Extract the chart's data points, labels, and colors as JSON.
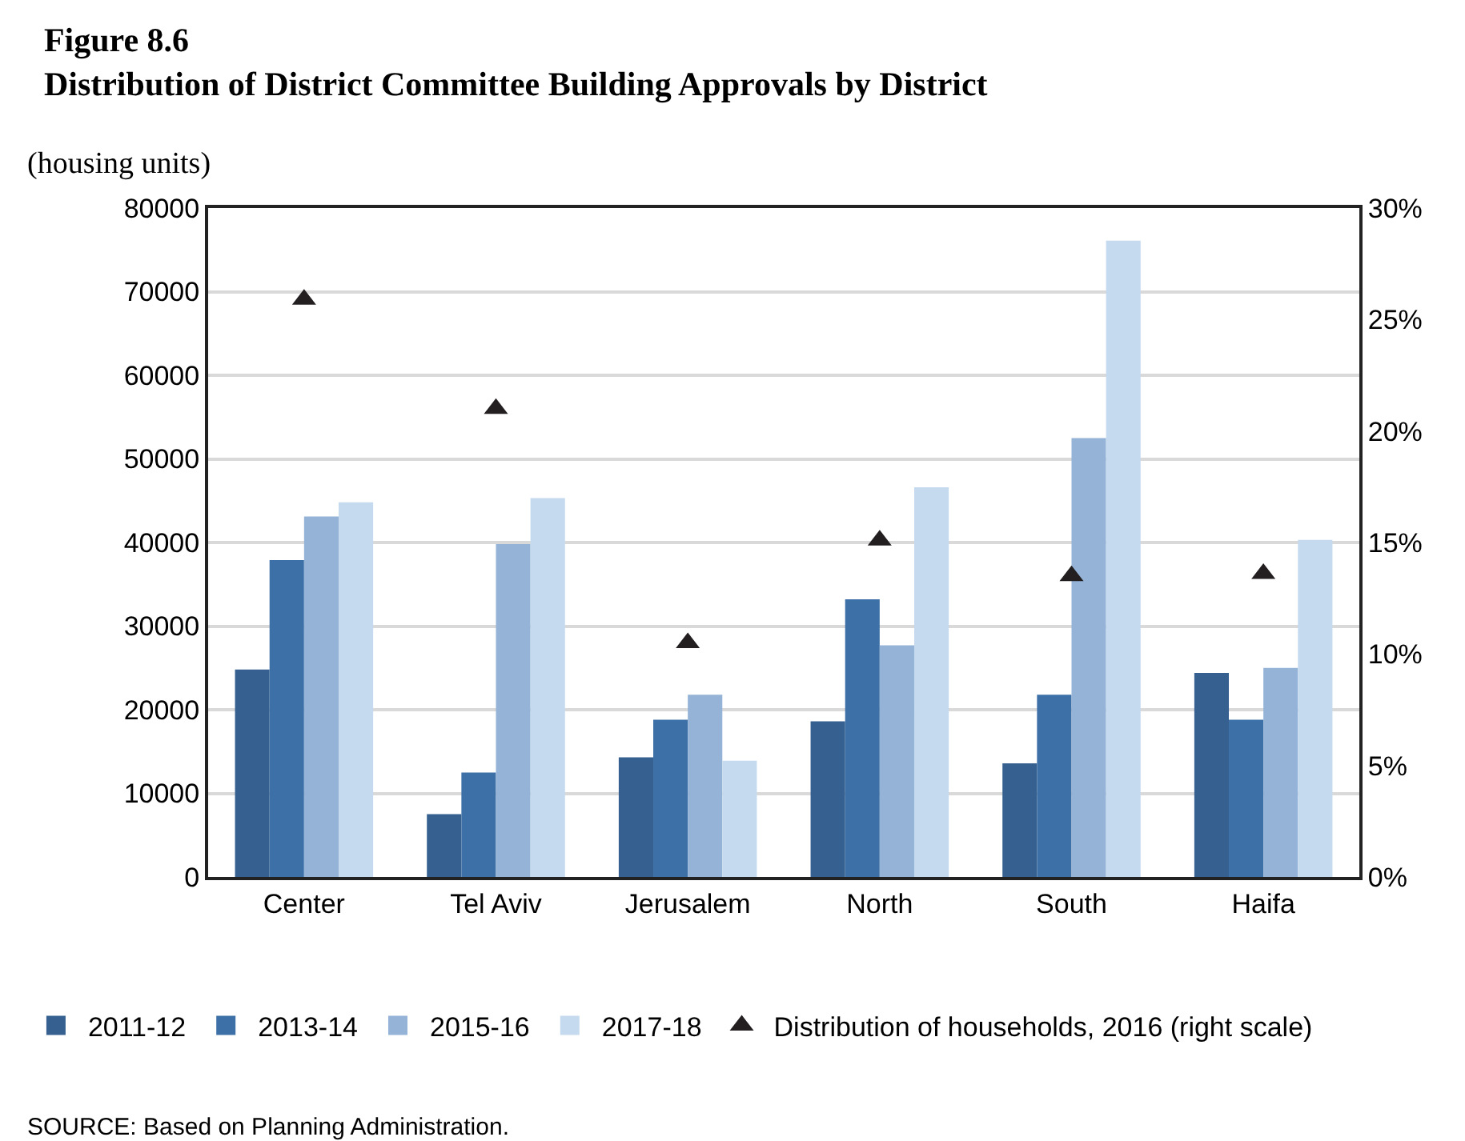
{
  "chart_data": {
    "type": "bar",
    "title": "Figure 8.6\nDistribution of District Committee Building Approvals by District",
    "subtitle": "(housing units)",
    "categories": [
      "Center",
      "Tel Aviv",
      "Jerusalem",
      "North",
      "South",
      "Haifa"
    ],
    "series": [
      {
        "name": "2011-12",
        "color": "#35608f",
        "values": [
          24800,
          7500,
          14300,
          18600,
          13600,
          24400
        ]
      },
      {
        "name": "2013-14",
        "color": "#3d70a6",
        "values": [
          37900,
          12500,
          18800,
          33200,
          21800,
          18800
        ]
      },
      {
        "name": "2015-16",
        "color": "#94b3d7",
        "values": [
          43100,
          39800,
          21800,
          27700,
          52500,
          25000
        ]
      },
      {
        "name": "2017-18",
        "color": "#c5daee",
        "values": [
          44800,
          45300,
          13900,
          46600,
          76100,
          40300
        ]
      },
      {
        "name": "Distribution of households, 2016 (right scale)",
        "type": "scatter",
        "axis": "y2",
        "marker": "triangle",
        "color": "#231f20",
        "x": [
          "Center",
          "Tel Aviv",
          "Jerusalem",
          "North",
          "South",
          "Haifa"
        ],
        "values": [
          25.9,
          21.0,
          10.5,
          15.1,
          13.5,
          13.6
        ]
      }
    ],
    "ylim": [
      0,
      80000
    ],
    "yticks": [
      0,
      10000,
      20000,
      30000,
      40000,
      50000,
      60000,
      70000,
      80000
    ],
    "y2lim": [
      0,
      30
    ],
    "y2ticks": [
      {
        "value": 0,
        "label": "0%"
      },
      {
        "value": 5,
        "label": "5%"
      },
      {
        "value": 10,
        "label": "10%"
      },
      {
        "value": 15,
        "label": "15%"
      },
      {
        "value": 20,
        "label": "20%"
      },
      {
        "value": 25,
        "label": "25%"
      },
      {
        "value": 30,
        "label": "30%"
      }
    ],
    "grid": "y",
    "legend": "bottom",
    "annotations": [
      "SOURCE: Based on Planning Administration."
    ]
  }
}
